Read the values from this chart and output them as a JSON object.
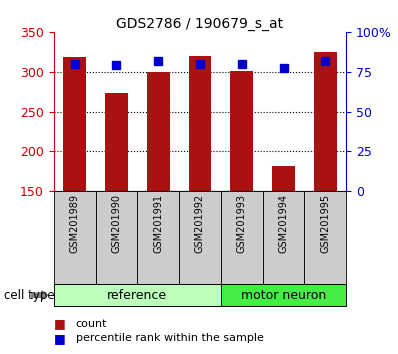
{
  "title": "GDS2786 / 190679_s_at",
  "categories": [
    "GSM201989",
    "GSM201990",
    "GSM201991",
    "GSM201992",
    "GSM201993",
    "GSM201994",
    "GSM201995"
  ],
  "count_values": [
    318,
    273,
    300,
    320,
    301,
    181,
    325
  ],
  "percentile_values": [
    80,
    79,
    82,
    80,
    80,
    77,
    82
  ],
  "ylim_left": [
    150,
    350
  ],
  "ylim_right": [
    0,
    100
  ],
  "yticks_left": [
    150,
    200,
    250,
    300,
    350
  ],
  "yticks_right": [
    0,
    25,
    50,
    75,
    100
  ],
  "ytick_labels_right": [
    "0",
    "25",
    "50",
    "75",
    "100%"
  ],
  "grid_yticks": [
    200,
    250,
    300
  ],
  "bar_color": "#aa1111",
  "marker_color": "#0000cc",
  "cell_type_groups": [
    {
      "label": "reference",
      "start": 0,
      "end": 3,
      "color": "#bbffbb"
    },
    {
      "label": "motor neuron",
      "start": 4,
      "end": 6,
      "color": "#44ee44"
    }
  ],
  "cell_type_label": "cell type",
  "legend_count_label": "count",
  "legend_percentile_label": "percentile rank within the sample",
  "left_axis_color": "#cc0000",
  "right_axis_color": "#0000cc",
  "bar_width": 0.55,
  "marker_size": 6,
  "xticklabel_box_color": "#cccccc",
  "xticklabel_fontsize": 7,
  "cell_type_fontsize": 9,
  "legend_fontsize": 8
}
